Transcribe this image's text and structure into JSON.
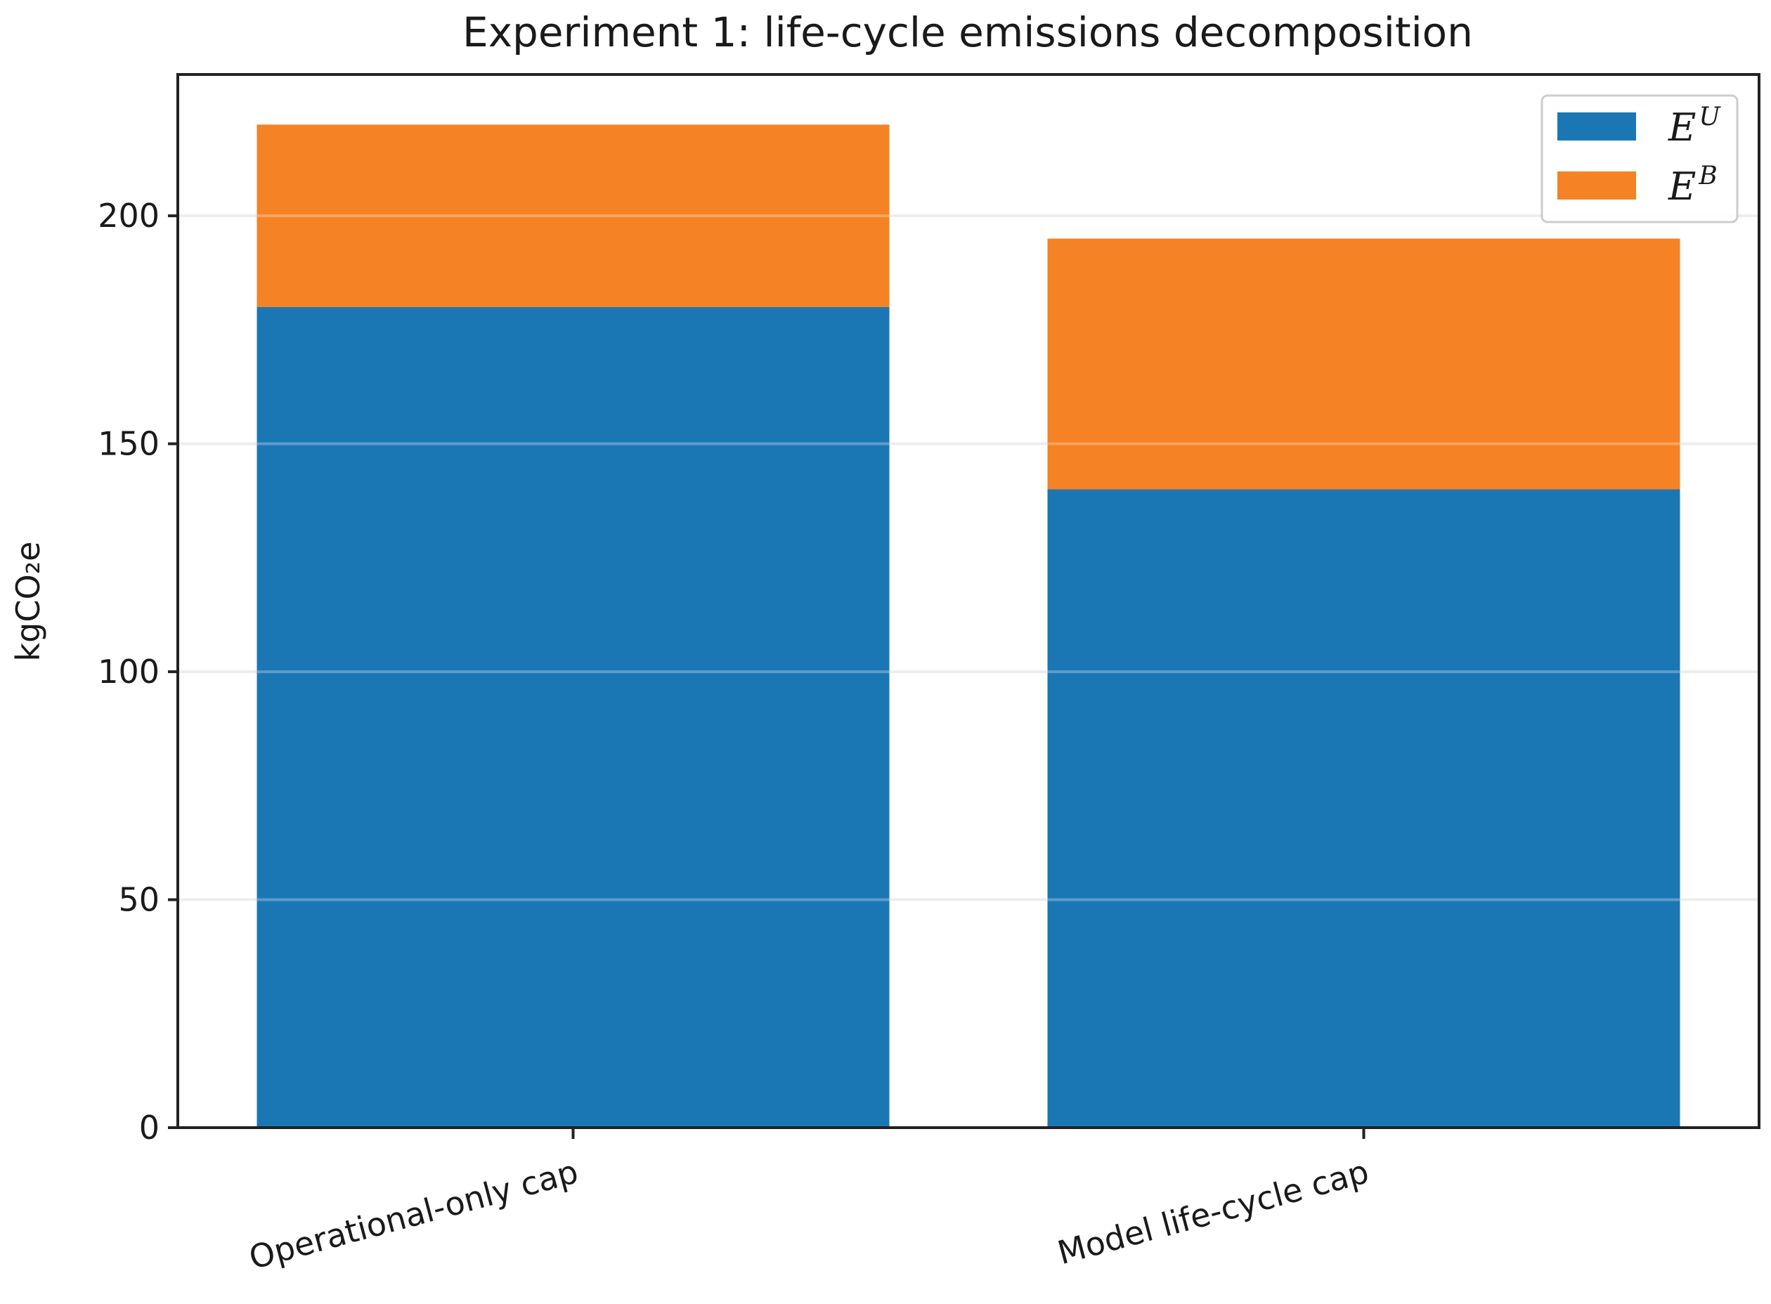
{
  "chart_data": {
    "type": "bar",
    "stacked": true,
    "title": "Experiment 1: life-cycle emissions decomposition",
    "ylabel": "kgCO₂e",
    "xlabel": "",
    "categories": [
      "Operational-only cap",
      "Model life-cycle cap"
    ],
    "series": [
      {
        "name": "E^U",
        "base": "E",
        "sup": "U",
        "color": "#1b77b4",
        "values": [
          180,
          140
        ]
      },
      {
        "name": "E^B",
        "base": "E",
        "sup": "B",
        "color": "#f58225",
        "values": [
          40,
          55
        ]
      }
    ],
    "ylim": [
      0,
      231
    ],
    "yticks": [
      0,
      50,
      100,
      150,
      200
    ],
    "grid": "horizontal",
    "legend": "top-right",
    "tick_rotation": -15
  }
}
